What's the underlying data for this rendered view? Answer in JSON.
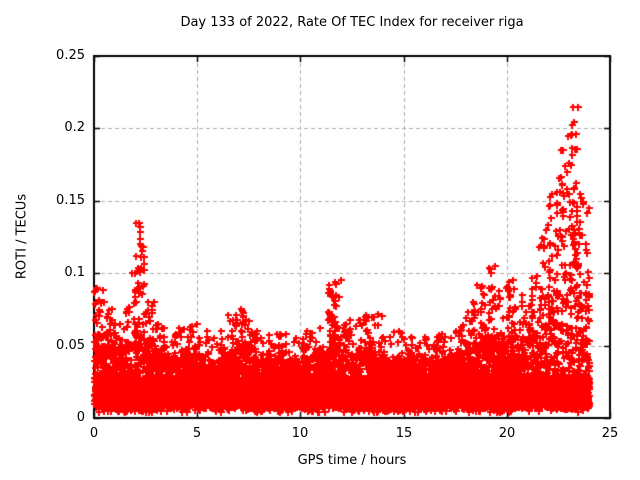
{
  "chart_data": {
    "type": "scatter",
    "title": "Day 133 of 2022, Rate Of TEC Index for receiver riga",
    "xlabel": "GPS time / hours",
    "ylabel": "ROTI / TECUs",
    "xlim": [
      0,
      25
    ],
    "ylim": [
      0,
      0.25
    ],
    "xtick_values": [
      0,
      5,
      10,
      15,
      20,
      25
    ],
    "xtick_labels": [
      "0",
      "5",
      "10",
      "15",
      "20",
      "25"
    ],
    "ytick_values": [
      0,
      0.05,
      0.1,
      0.15,
      0.2,
      0.25
    ],
    "ytick_labels": [
      "0",
      "0.05",
      "0.1",
      "0.15",
      "0.2",
      "0.25"
    ],
    "grid": "dashed",
    "legend": "none",
    "marker": {
      "symbol": "+",
      "size": 7
    },
    "colors": {
      "marker": "#ff0000",
      "grid": "#b0b0b0",
      "axis": "#000000",
      "text": "#000000",
      "background": "#ffffff"
    },
    "time_coverage_hours": [
      0,
      24
    ],
    "scatter_summary": {
      "description": "Dense ROTI scatter; per 0.5-hour bin: top of dense band and max envelope value in TECUs, floor near 0.004",
      "bin_step_hours": 0.5,
      "dense_top": [
        0.055,
        0.048,
        0.045,
        0.05,
        0.058,
        0.048,
        0.044,
        0.04,
        0.04,
        0.042,
        0.04,
        0.038,
        0.04,
        0.044,
        0.046,
        0.04,
        0.038,
        0.04,
        0.038,
        0.038,
        0.04,
        0.042,
        0.044,
        0.05,
        0.044,
        0.042,
        0.046,
        0.04,
        0.038,
        0.04,
        0.038,
        0.036,
        0.038,
        0.04,
        0.038,
        0.042,
        0.048,
        0.052,
        0.055,
        0.052,
        0.054,
        0.05,
        0.054,
        0.062,
        0.075,
        0.095,
        0.105,
        0.085
      ],
      "max": [
        0.09,
        0.075,
        0.065,
        0.1,
        0.135,
        0.08,
        0.065,
        0.058,
        0.062,
        0.065,
        0.06,
        0.055,
        0.06,
        0.071,
        0.075,
        0.06,
        0.055,
        0.058,
        0.058,
        0.055,
        0.058,
        0.062,
        0.07,
        0.095,
        0.068,
        0.064,
        0.07,
        0.072,
        0.056,
        0.06,
        0.056,
        0.052,
        0.056,
        0.058,
        0.056,
        0.064,
        0.08,
        0.092,
        0.105,
        0.09,
        0.095,
        0.085,
        0.098,
        0.13,
        0.155,
        0.195,
        0.215,
        0.155
      ],
      "min_floor": 0.004
    },
    "peaks": [
      {
        "t": 0.05,
        "v": 0.088,
        "n": 8
      },
      {
        "t": 0.15,
        "v": 0.09,
        "n": 6
      },
      {
        "t": 0.35,
        "v": 0.08,
        "n": 6
      },
      {
        "t": 0.7,
        "v": 0.072,
        "n": 6
      },
      {
        "t": 1.0,
        "v": 0.065,
        "n": 5
      },
      {
        "t": 1.6,
        "v": 0.075,
        "n": 6
      },
      {
        "t": 2.0,
        "v": 0.1,
        "n": 8
      },
      {
        "t": 2.2,
        "v": 0.135,
        "n": 14
      },
      {
        "t": 2.35,
        "v": 0.118,
        "n": 8
      },
      {
        "t": 2.6,
        "v": 0.08,
        "n": 6
      },
      {
        "t": 4.65,
        "v": 0.063,
        "n": 4
      },
      {
        "t": 6.9,
        "v": 0.071,
        "n": 7
      },
      {
        "t": 7.15,
        "v": 0.074,
        "n": 7
      },
      {
        "t": 9.0,
        "v": 0.058,
        "n": 4
      },
      {
        "t": 10.3,
        "v": 0.06,
        "n": 4
      },
      {
        "t": 11.4,
        "v": 0.092,
        "n": 10
      },
      {
        "t": 11.6,
        "v": 0.084,
        "n": 8
      },
      {
        "t": 12.2,
        "v": 0.065,
        "n": 5
      },
      {
        "t": 12.9,
        "v": 0.068,
        "n": 6
      },
      {
        "t": 13.2,
        "v": 0.071,
        "n": 6
      },
      {
        "t": 14.0,
        "v": 0.056,
        "n": 4
      },
      {
        "t": 15.4,
        "v": 0.055,
        "n": 4
      },
      {
        "t": 16.6,
        "v": 0.056,
        "n": 4
      },
      {
        "t": 17.8,
        "v": 0.063,
        "n": 5
      },
      {
        "t": 18.4,
        "v": 0.079,
        "n": 7
      },
      {
        "t": 18.8,
        "v": 0.091,
        "n": 7
      },
      {
        "t": 19.2,
        "v": 0.103,
        "n": 9
      },
      {
        "t": 19.6,
        "v": 0.088,
        "n": 7
      },
      {
        "t": 20.1,
        "v": 0.094,
        "n": 8
      },
      {
        "t": 20.35,
        "v": 0.089,
        "n": 6
      },
      {
        "t": 21.2,
        "v": 0.097,
        "n": 8
      },
      {
        "t": 21.7,
        "v": 0.124,
        "n": 9
      },
      {
        "t": 22.1,
        "v": 0.147,
        "n": 9
      },
      {
        "t": 22.45,
        "v": 0.156,
        "n": 10
      },
      {
        "t": 22.7,
        "v": 0.185,
        "n": 12
      },
      {
        "t": 23.0,
        "v": 0.176,
        "n": 10
      },
      {
        "t": 23.2,
        "v": 0.215,
        "n": 14
      },
      {
        "t": 23.35,
        "v": 0.196,
        "n": 12
      },
      {
        "t": 23.6,
        "v": 0.152,
        "n": 9
      },
      {
        "t": 23.85,
        "v": 0.12,
        "n": 7
      }
    ]
  }
}
